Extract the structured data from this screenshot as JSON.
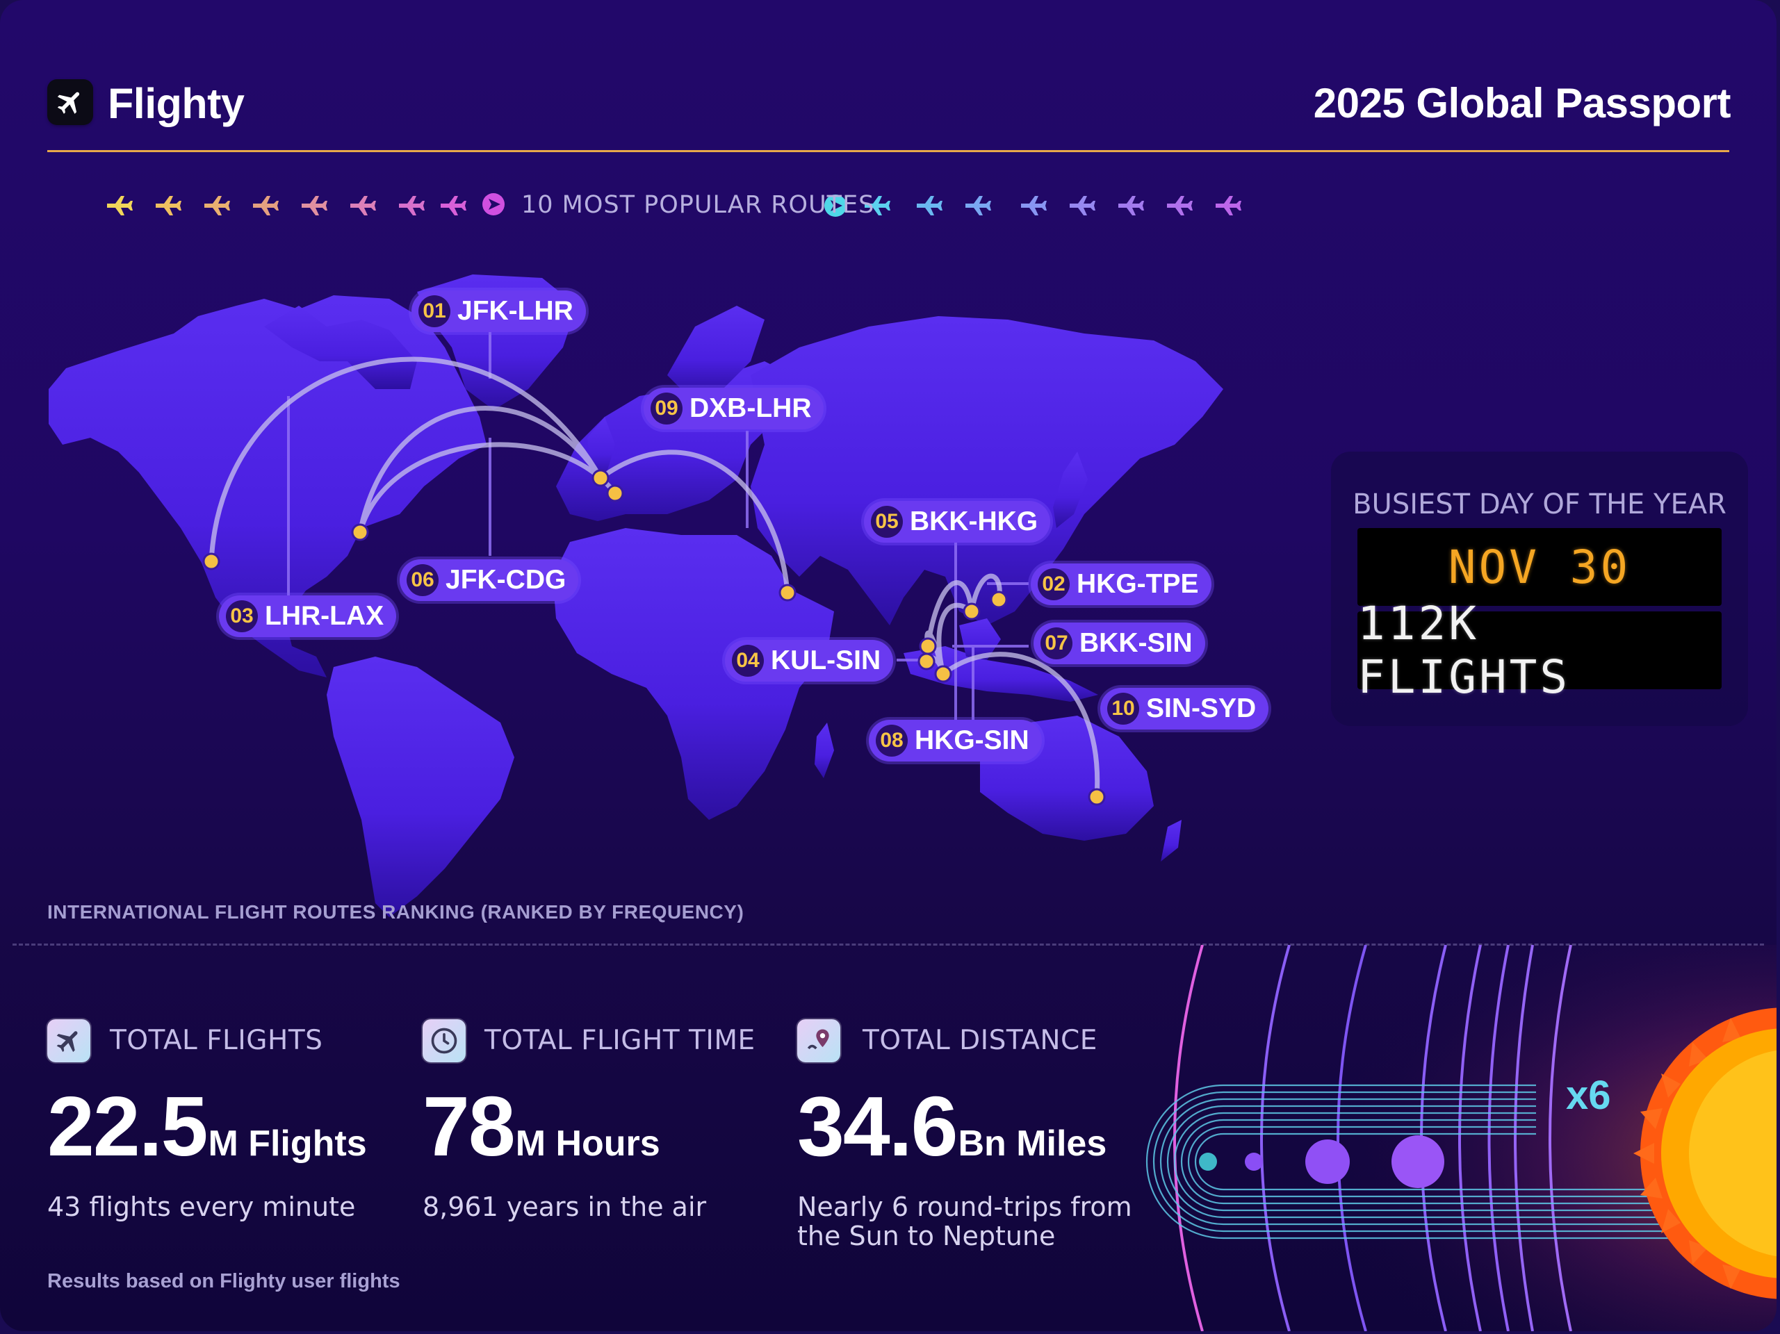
{
  "header": {
    "app_name": "Flighty",
    "title": "2025 Global Passport",
    "accent_color": "#e8a84a"
  },
  "routes_section": {
    "title": "10 MOST POPULAR ROUTES",
    "caption": "INTERNATIONAL FLIGHT ROUTES RANKING (RANKED BY FREQUENCY)",
    "routes": [
      {
        "rank": "01",
        "route": "JFK-LHR"
      },
      {
        "rank": "02",
        "route": "HKG-TPE"
      },
      {
        "rank": "03",
        "route": "LHR-LAX"
      },
      {
        "rank": "04",
        "route": "KUL-SIN"
      },
      {
        "rank": "05",
        "route": "BKK-HKG"
      },
      {
        "rank": "06",
        "route": "JFK-CDG"
      },
      {
        "rank": "07",
        "route": "BKK-SIN"
      },
      {
        "rank": "08",
        "route": "HKG-SIN"
      },
      {
        "rank": "09",
        "route": "DXB-LHR"
      },
      {
        "rank": "10",
        "route": "SIN-SYD"
      }
    ]
  },
  "busiest_day": {
    "label": "BUSIEST DAY OF THE YEAR",
    "date": "NOV 30",
    "flights": "112K FLIGHTS"
  },
  "stats": {
    "flights": {
      "label": "TOTAL FLIGHTS",
      "value": "22.5",
      "unit": "M Flights",
      "sub": "43 flights every minute",
      "icon": "airplane-icon"
    },
    "time": {
      "label": "TOTAL FLIGHT TIME",
      "value": "78",
      "unit": "M Hours",
      "sub": "8,961 years in the air",
      "icon": "clock-icon"
    },
    "distance": {
      "label": "TOTAL DISTANCE",
      "value": "34.6",
      "unit": "Bn Miles",
      "sub_line1": "Nearly 6 round-trips from",
      "sub_line2": "the Sun to Neptune",
      "icon": "map-pin-icon"
    }
  },
  "solar": {
    "multiplier": "x6",
    "sun_color": "#ffb000"
  },
  "footnote": "Results based on Flighty user flights"
}
